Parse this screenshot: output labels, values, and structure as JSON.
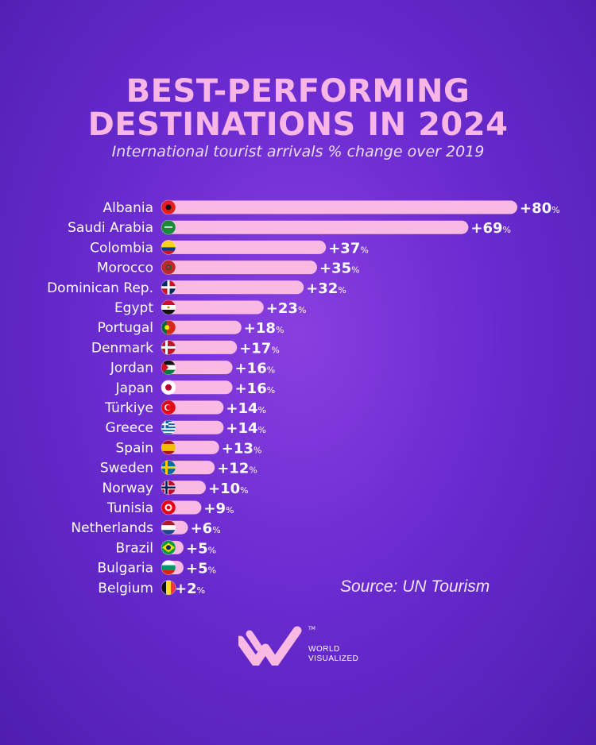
{
  "title_line1": "BEST-PERFORMING",
  "title_line2": "DESTINATIONS IN 2024",
  "subtitle": "International tourist arrivals % change over 2019",
  "source": "Source: UN Tourism",
  "brand": {
    "line1": "WORLD",
    "line2": "VISUALIZED",
    "tm": "TM"
  },
  "colors": {
    "bar": "#f9b9e2",
    "title": "#f7b6e6",
    "label": "#ffffff"
  },
  "chart_data": {
    "type": "bar",
    "orientation": "horizontal",
    "title": "BEST-PERFORMING DESTINATIONS IN 2024",
    "subtitle": "International tourist arrivals % change over 2019",
    "unit": "%",
    "xlim": [
      0,
      80
    ],
    "categories": [
      "Albania",
      "Saudi Arabia",
      "Colombia",
      "Morocco",
      "Dominican Rep.",
      "Egypt",
      "Portugal",
      "Denmark",
      "Jordan",
      "Japan",
      "Türkiye",
      "Greece",
      "Spain",
      "Sweden",
      "Norway",
      "Tunisia",
      "Netherlands",
      "Brazil",
      "Bulgaria",
      "Belgium"
    ],
    "values": [
      80,
      69,
      37,
      35,
      32,
      23,
      18,
      17,
      16,
      16,
      14,
      14,
      13,
      12,
      10,
      9,
      6,
      5,
      5,
      2
    ],
    "labels": [
      "+80",
      "+69",
      "+37",
      "+35",
      "+32",
      "+23",
      "+18",
      "+17",
      "+16",
      "+16",
      "+14",
      "+14",
      "+13",
      "+12",
      "+10",
      "+9",
      "+6",
      "+5",
      "+5",
      "+2"
    ],
    "flags": [
      "albania-flag",
      "saudi-arabia-flag",
      "colombia-flag",
      "morocco-flag",
      "dominican-rep-flag",
      "egypt-flag",
      "portugal-flag",
      "denmark-flag",
      "jordan-flag",
      "japan-flag",
      "turkiye-flag",
      "greece-flag",
      "spain-flag",
      "sweden-flag",
      "norway-flag",
      "tunisia-flag",
      "netherlands-flag",
      "brazil-flag",
      "bulgaria-flag",
      "belgium-flag"
    ],
    "source": "Source: UN Tourism"
  }
}
